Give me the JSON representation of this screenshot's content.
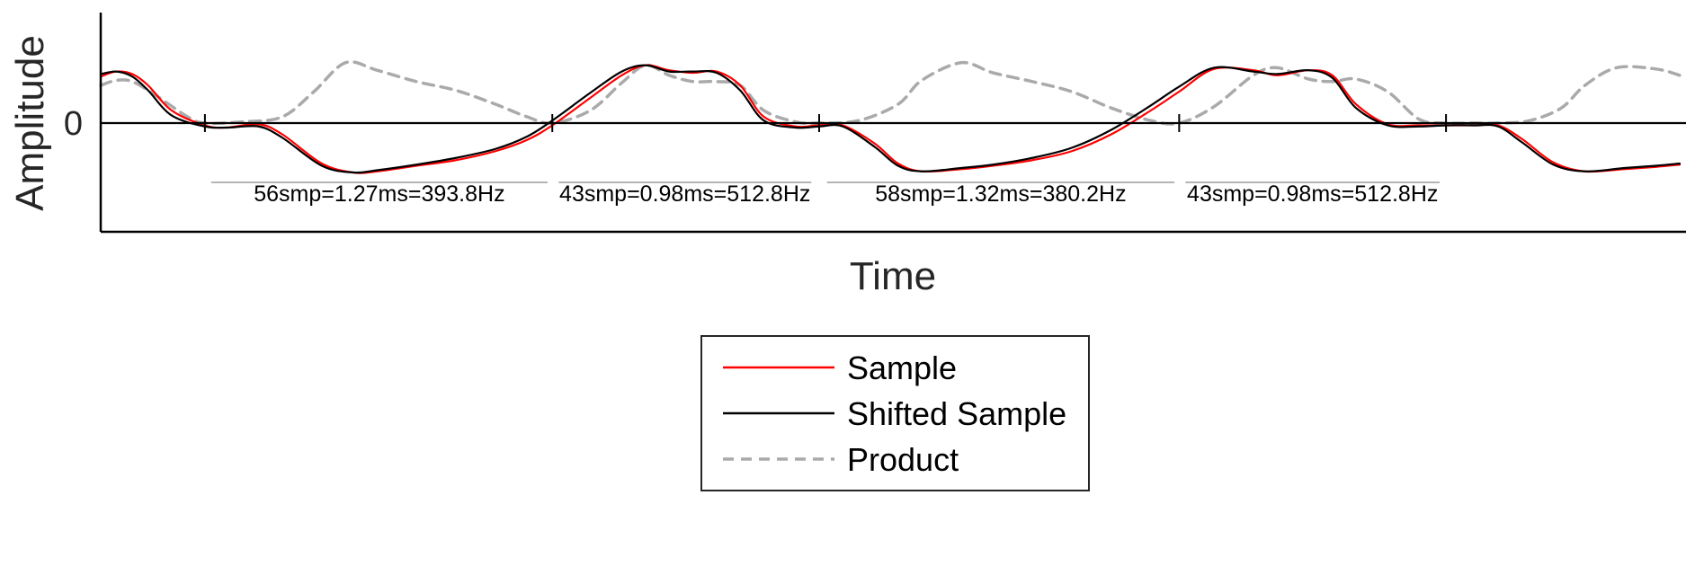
{
  "chart_data": {
    "type": "line",
    "title": "",
    "xlabel": "Time",
    "ylabel": "Amplitude",
    "xlim": [
      0,
      1
    ],
    "ylim": [
      -1,
      1
    ],
    "yticks": [
      {
        "value": 0,
        "label": "0"
      }
    ],
    "grid": false,
    "legend_position": "bottom-center",
    "zero_crossings": [
      0.066,
      0.286,
      0.455,
      0.683,
      0.852
    ],
    "series": [
      {
        "name": "Sample",
        "color": "#ff0000",
        "style": "solid",
        "x": [
          0,
          0.01,
          0.02,
          0.03,
          0.045,
          0.066,
          0.08,
          0.1,
          0.115,
          0.14,
          0.16,
          0.175,
          0.2,
          0.225,
          0.25,
          0.27,
          0.286,
          0.31,
          0.33,
          0.345,
          0.36,
          0.375,
          0.39,
          0.405,
          0.42,
          0.44,
          0.455,
          0.47,
          0.49,
          0.505,
          0.52,
          0.545,
          0.565,
          0.59,
          0.615,
          0.64,
          0.665,
          0.683,
          0.705,
          0.73,
          0.745,
          0.765,
          0.78,
          0.795,
          0.815,
          0.835,
          0.852,
          0.87,
          0.885,
          0.9,
          0.92,
          0.94,
          0.965,
          0.985,
          1.0
        ],
        "y": [
          0.37,
          0.41,
          0.39,
          0.3,
          0.1,
          -0.02,
          -0.04,
          -0.01,
          -0.1,
          -0.36,
          -0.44,
          -0.43,
          -0.38,
          -0.33,
          -0.25,
          -0.15,
          -0.02,
          0.2,
          0.38,
          0.46,
          0.42,
          0.4,
          0.41,
          0.3,
          0.05,
          -0.03,
          -0.02,
          -0.02,
          -0.18,
          -0.36,
          -0.43,
          -0.41,
          -0.38,
          -0.33,
          -0.25,
          -0.1,
          0.1,
          0.25,
          0.43,
          0.42,
          0.38,
          0.42,
          0.38,
          0.15,
          -0.01,
          -0.02,
          -0.02,
          -0.02,
          -0.02,
          -0.14,
          -0.35,
          -0.43,
          -0.41,
          -0.39,
          -0.37
        ]
      },
      {
        "name": "Shifted Sample",
        "color": "#000000",
        "style": "solid",
        "x": [
          0,
          0.01,
          0.02,
          0.03,
          0.045,
          0.066,
          0.08,
          0.1,
          0.115,
          0.14,
          0.16,
          0.175,
          0.2,
          0.225,
          0.25,
          0.27,
          0.286,
          0.31,
          0.33,
          0.345,
          0.36,
          0.375,
          0.39,
          0.405,
          0.42,
          0.44,
          0.455,
          0.47,
          0.49,
          0.505,
          0.52,
          0.545,
          0.565,
          0.59,
          0.615,
          0.64,
          0.665,
          0.683,
          0.705,
          0.73,
          0.745,
          0.765,
          0.78,
          0.795,
          0.815,
          0.835,
          0.852,
          0.87,
          0.885,
          0.9,
          0.92,
          0.94,
          0.965,
          0.985,
          1.0
        ],
        "y": [
          0.39,
          0.41,
          0.37,
          0.26,
          0.06,
          -0.03,
          -0.04,
          -0.03,
          -0.13,
          -0.38,
          -0.44,
          -0.42,
          -0.37,
          -0.31,
          -0.23,
          -0.12,
          0.02,
          0.24,
          0.41,
          0.46,
          0.41,
          0.41,
          0.4,
          0.26,
          0.02,
          -0.04,
          -0.03,
          -0.03,
          -0.21,
          -0.38,
          -0.43,
          -0.4,
          -0.37,
          -0.31,
          -0.22,
          -0.06,
          0.14,
          0.29,
          0.44,
          0.41,
          0.39,
          0.42,
          0.36,
          0.12,
          -0.02,
          -0.03,
          -0.02,
          -0.02,
          -0.03,
          -0.17,
          -0.37,
          -0.43,
          -0.4,
          -0.38,
          -0.36
        ]
      },
      {
        "name": "Product",
        "color": "#aaaaaa",
        "style": "dashed",
        "x": [
          0,
          0.01,
          0.02,
          0.035,
          0.055,
          0.066,
          0.09,
          0.115,
          0.135,
          0.155,
          0.175,
          0.2,
          0.225,
          0.25,
          0.27,
          0.286,
          0.31,
          0.33,
          0.345,
          0.36,
          0.375,
          0.39,
          0.405,
          0.42,
          0.44,
          0.455,
          0.48,
          0.505,
          0.52,
          0.545,
          0.565,
          0.59,
          0.615,
          0.64,
          0.665,
          0.683,
          0.705,
          0.73,
          0.745,
          0.765,
          0.78,
          0.795,
          0.815,
          0.835,
          0.852,
          0.87,
          0.885,
          0.905,
          0.925,
          0.94,
          0.96,
          0.985,
          1.0
        ],
        "y": [
          0.3,
          0.34,
          0.33,
          0.22,
          0.05,
          0.0,
          0.01,
          0.05,
          0.25,
          0.48,
          0.42,
          0.33,
          0.26,
          0.15,
          0.05,
          0.0,
          0.1,
          0.32,
          0.46,
          0.38,
          0.33,
          0.33,
          0.3,
          0.1,
          0.01,
          0.0,
          0.02,
          0.15,
          0.34,
          0.48,
          0.4,
          0.33,
          0.25,
          0.12,
          0.02,
          0.0,
          0.13,
          0.38,
          0.44,
          0.35,
          0.33,
          0.35,
          0.25,
          0.03,
          0.0,
          0.0,
          0.0,
          0.02,
          0.12,
          0.3,
          0.44,
          0.43,
          0.38
        ]
      }
    ],
    "annotations": [
      {
        "x_start": 0.07,
        "x_end": 0.283,
        "label": "56smp=1.27ms=393.8Hz"
      },
      {
        "x_start": 0.29,
        "x_end": 0.45,
        "label": "43smp=0.98ms=512.8Hz"
      },
      {
        "x_start": 0.46,
        "x_end": 0.68,
        "label": "58smp=1.32ms=380.2Hz"
      },
      {
        "x_start": 0.687,
        "x_end": 0.848,
        "label": "43smp=0.98ms=512.8Hz"
      }
    ]
  }
}
